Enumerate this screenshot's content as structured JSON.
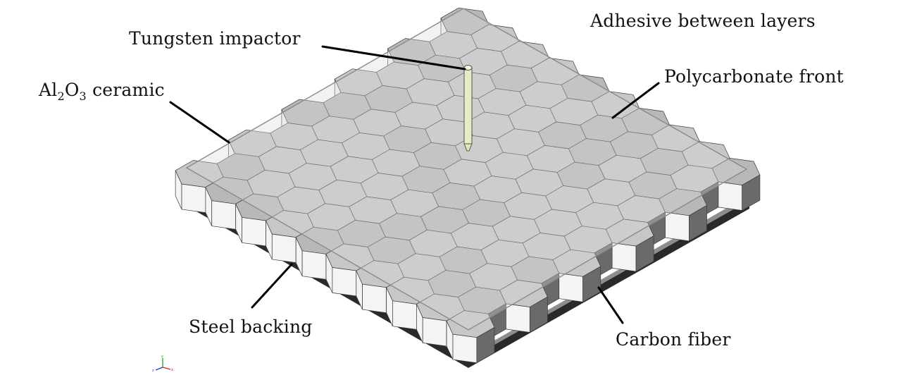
{
  "figure": {
    "labels": {
      "tungsten": "Tungsten impactor",
      "adhesive": "Adhesive between layers",
      "polycarbonate": "Polycarbonate front",
      "ceramic_prefix": "Al",
      "ceramic_sub1": "2",
      "ceramic_mid": "O",
      "ceramic_sub2": "3",
      "ceramic_suffix": " ceramic",
      "steel": "Steel backing",
      "carbon": "Carbon fiber"
    },
    "triad_axes": [
      "x",
      "y",
      "z"
    ],
    "colors": {
      "ceramic_tile_top": "#c7c7c7",
      "tile_side_light": "#f4f4f4",
      "tile_side_dark": "#6a6a6a",
      "polycarbonate_sheet": "#d9d9d9",
      "steel_plate": "#8d8d8d",
      "carbon_layer": "#2a2a2a",
      "impactor": "#e8ecc4",
      "triad_x": "#d02020",
      "triad_y": "#20a020",
      "triad_z": "#2040d0"
    }
  }
}
